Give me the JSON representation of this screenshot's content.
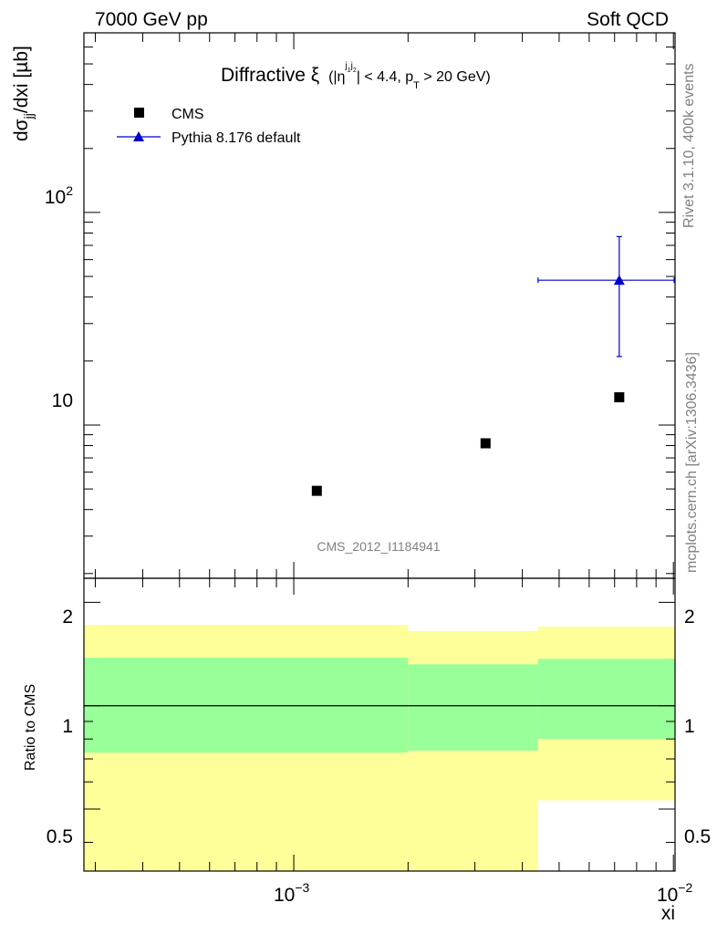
{
  "header": {
    "left": "7000 GeV pp",
    "right": "Soft QCD"
  },
  "side_labels": {
    "rivet": "Rivet 3.1.10,  400k events",
    "mcplots": "mcplots.cern.ch [arXiv:1306.3436]"
  },
  "chart_data": [
    {
      "type": "scatter",
      "title_main": "Diffractive ξ",
      "title_cut_1": "(|η",
      "title_cut_sup_1": "j",
      "title_cut_sub_sup_1": "1",
      "title_cut_sup_2": "j",
      "title_cut_sub_sup_2": "2",
      "title_cut_2": "| < 4.4, p",
      "title_cut_sub": "T",
      "title_cut_3": " > 20 GeV)",
      "ylabel": "dσ",
      "ylabel_sub": "jj",
      "ylabel_rest": "/dxi [µb]",
      "xscale": "log",
      "yscale": "log",
      "xlim": [
        0.00028,
        0.0101
      ],
      "ylim": [
        1.9,
        700
      ],
      "yticks": [
        "10",
        "10"
      ],
      "ytick_sup": [
        "",
        "2"
      ],
      "watermark": "CMS_2012_I1184941",
      "legend_position": "top-left",
      "series": [
        {
          "name": "CMS",
          "marker": "square",
          "color": "#000000",
          "points": [
            {
              "x": 0.00115,
              "y": 4.9
            },
            {
              "x": 0.0032,
              "y": 8.2
            },
            {
              "x": 0.0072,
              "y": 13.5
            }
          ]
        },
        {
          "name": "Pythia 8.176 default",
          "marker": "triangle",
          "color": "#0000cc",
          "points": [
            {
              "x": 0.0072,
              "y": 48,
              "xlo": 0.0044,
              "xhi": 0.0101,
              "ylo": 21,
              "yhi": 77
            }
          ]
        }
      ]
    },
    {
      "type": "area",
      "ylabel": "Ratio to CMS",
      "xlabel": "xi",
      "xscale": "log",
      "xlim": [
        0.00028,
        0.0101
      ],
      "ylim": [
        0.33,
        2.35
      ],
      "reference_line": 1,
      "yticks": [
        "0.5",
        "1",
        "2"
      ],
      "xtick_base": "10",
      "xtick_exp": [
        "−3",
        "−2"
      ],
      "bands": [
        {
          "x0": 0.00028,
          "x1": 0.002,
          "yellow": [
            0.33,
            1.72
          ],
          "green": [
            0.73,
            1.38
          ]
        },
        {
          "x0": 0.002,
          "x1": 0.0044,
          "yellow": [
            0.33,
            1.65
          ],
          "green": [
            0.74,
            1.32
          ]
        },
        {
          "x0": 0.0044,
          "x1": 0.0101,
          "yellow": [
            0.53,
            1.7
          ],
          "green": [
            0.8,
            1.37
          ]
        }
      ],
      "colors": {
        "yellow": "#ffff99",
        "green": "#99ff99"
      }
    }
  ]
}
